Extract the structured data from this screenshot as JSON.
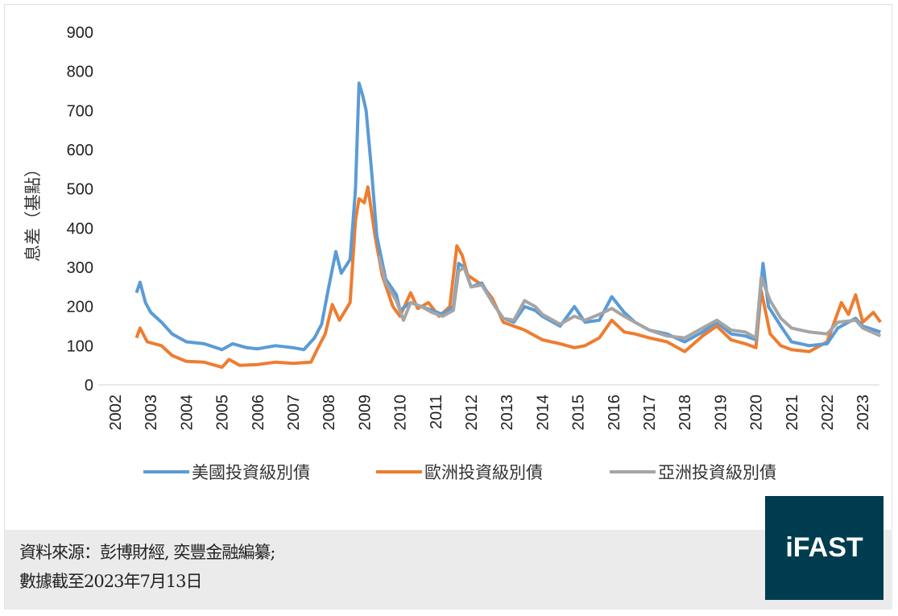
{
  "chart_data": {
    "type": "line",
    "title": "",
    "xlabel": "",
    "ylabel": "息差（基點）",
    "ylim": [
      0,
      900
    ],
    "yticks": [
      0,
      100,
      200,
      300,
      400,
      500,
      600,
      700,
      800,
      900
    ],
    "xlim": [
      2002,
      2023.6
    ],
    "xticks": [
      "2002",
      "2003",
      "2004",
      "2005",
      "2006",
      "2007",
      "2008",
      "2009",
      "2010",
      "2011",
      "2012",
      "2013",
      "2014",
      "2015",
      "2016",
      "2017",
      "2018",
      "2019",
      "2020",
      "2021",
      "2022",
      "2023"
    ],
    "grid": false,
    "legend_position": "bottom",
    "series": [
      {
        "name": "美國投資級別債",
        "color": "#5b9bd5",
        "x": [
          2002.6,
          2002.7,
          2002.85,
          2003.0,
          2003.3,
          2003.6,
          2004.0,
          2004.5,
          2005.0,
          2005.3,
          2005.7,
          2006.0,
          2006.5,
          2007.0,
          2007.3,
          2007.6,
          2007.8,
          2008.0,
          2008.2,
          2008.35,
          2008.6,
          2008.75,
          2008.85,
          2008.95,
          2009.05,
          2009.2,
          2009.35,
          2009.6,
          2009.9,
          2010.0,
          2010.3,
          2010.6,
          2010.9,
          2011.2,
          2011.5,
          2011.65,
          2011.8,
          2012.0,
          2012.3,
          2012.6,
          2012.9,
          2013.2,
          2013.5,
          2013.8,
          2014.0,
          2014.5,
          2014.9,
          2015.2,
          2015.6,
          2015.95,
          2016.3,
          2016.6,
          2017.0,
          2017.5,
          2018.0,
          2018.5,
          2018.9,
          2019.3,
          2019.7,
          2020.0,
          2020.2,
          2020.35,
          2020.7,
          2021.0,
          2021.5,
          2022.0,
          2022.3,
          2022.8,
          2023.0,
          2023.5
        ],
        "values": [
          235,
          262,
          210,
          185,
          160,
          130,
          110,
          105,
          90,
          105,
          95,
          92,
          100,
          95,
          90,
          120,
          155,
          250,
          340,
          285,
          320,
          500,
          770,
          740,
          700,
          550,
          380,
          270,
          230,
          190,
          210,
          200,
          190,
          180,
          200,
          310,
          300,
          250,
          260,
          210,
          170,
          160,
          200,
          190,
          175,
          150,
          200,
          160,
          165,
          225,
          185,
          160,
          140,
          130,
          110,
          135,
          160,
          130,
          125,
          115,
          310,
          200,
          150,
          110,
          100,
          105,
          145,
          170,
          150,
          135
        ]
      },
      {
        "name": "歐洲投資級別債",
        "color": "#ed7d31",
        "x": [
          2002.6,
          2002.7,
          2002.9,
          2003.3,
          2003.6,
          2004.0,
          2004.5,
          2005.0,
          2005.2,
          2005.5,
          2006.0,
          2006.5,
          2007.0,
          2007.5,
          2007.7,
          2007.9,
          2008.1,
          2008.3,
          2008.6,
          2008.75,
          2008.85,
          2009.0,
          2009.1,
          2009.3,
          2009.5,
          2009.8,
          2010.0,
          2010.3,
          2010.5,
          2010.8,
          2011.1,
          2011.4,
          2011.6,
          2011.75,
          2011.9,
          2012.3,
          2012.6,
          2012.9,
          2013.2,
          2013.5,
          2014.0,
          2014.5,
          2014.9,
          2015.2,
          2015.6,
          2015.95,
          2016.3,
          2016.6,
          2017.0,
          2017.5,
          2018.0,
          2018.5,
          2018.9,
          2019.3,
          2019.7,
          2020.0,
          2020.15,
          2020.4,
          2020.7,
          2021.0,
          2021.5,
          2022.0,
          2022.4,
          2022.6,
          2022.8,
          2023.0,
          2023.3,
          2023.5
        ],
        "values": [
          120,
          145,
          110,
          100,
          75,
          60,
          58,
          45,
          65,
          50,
          52,
          58,
          55,
          58,
          95,
          130,
          205,
          165,
          210,
          420,
          475,
          465,
          505,
          380,
          280,
          200,
          175,
          235,
          195,
          210,
          175,
          200,
          355,
          330,
          280,
          255,
          220,
          160,
          150,
          140,
          115,
          105,
          95,
          100,
          120,
          165,
          135,
          130,
          120,
          110,
          85,
          125,
          150,
          115,
          105,
          95,
          240,
          130,
          100,
          90,
          85,
          110,
          210,
          180,
          230,
          160,
          185,
          160
        ]
      },
      {
        "name": "亞洲投資級別債",
        "color": "#a5a5a5",
        "x": [
          2009.4,
          2009.6,
          2009.9,
          2010.1,
          2010.3,
          2010.6,
          2010.9,
          2011.2,
          2011.5,
          2011.65,
          2011.8,
          2012.0,
          2012.3,
          2012.6,
          2012.9,
          2013.2,
          2013.5,
          2013.8,
          2014.0,
          2014.5,
          2014.9,
          2015.2,
          2015.6,
          2015.95,
          2016.3,
          2016.6,
          2017.0,
          2017.5,
          2018.0,
          2018.5,
          2018.9,
          2019.3,
          2019.7,
          2020.0,
          2020.15,
          2020.4,
          2020.7,
          2021.0,
          2021.5,
          2022.0,
          2022.3,
          2022.8,
          2023.0,
          2023.5
        ],
        "values": [
          330,
          260,
          215,
          165,
          210,
          200,
          185,
          175,
          190,
          290,
          300,
          250,
          255,
          210,
          170,
          165,
          215,
          200,
          180,
          155,
          175,
          165,
          180,
          195,
          175,
          160,
          140,
          125,
          120,
          145,
          165,
          140,
          135,
          120,
          275,
          215,
          170,
          145,
          135,
          130,
          160,
          165,
          145,
          125
        ]
      }
    ]
  },
  "footer": {
    "source_line": "資料來源：彭博財經, 奕豐金融編纂;",
    "date_line": "數據截至2023年7月13日",
    "logo_text": "iFAST",
    "logo_color": "#003c4f"
  }
}
